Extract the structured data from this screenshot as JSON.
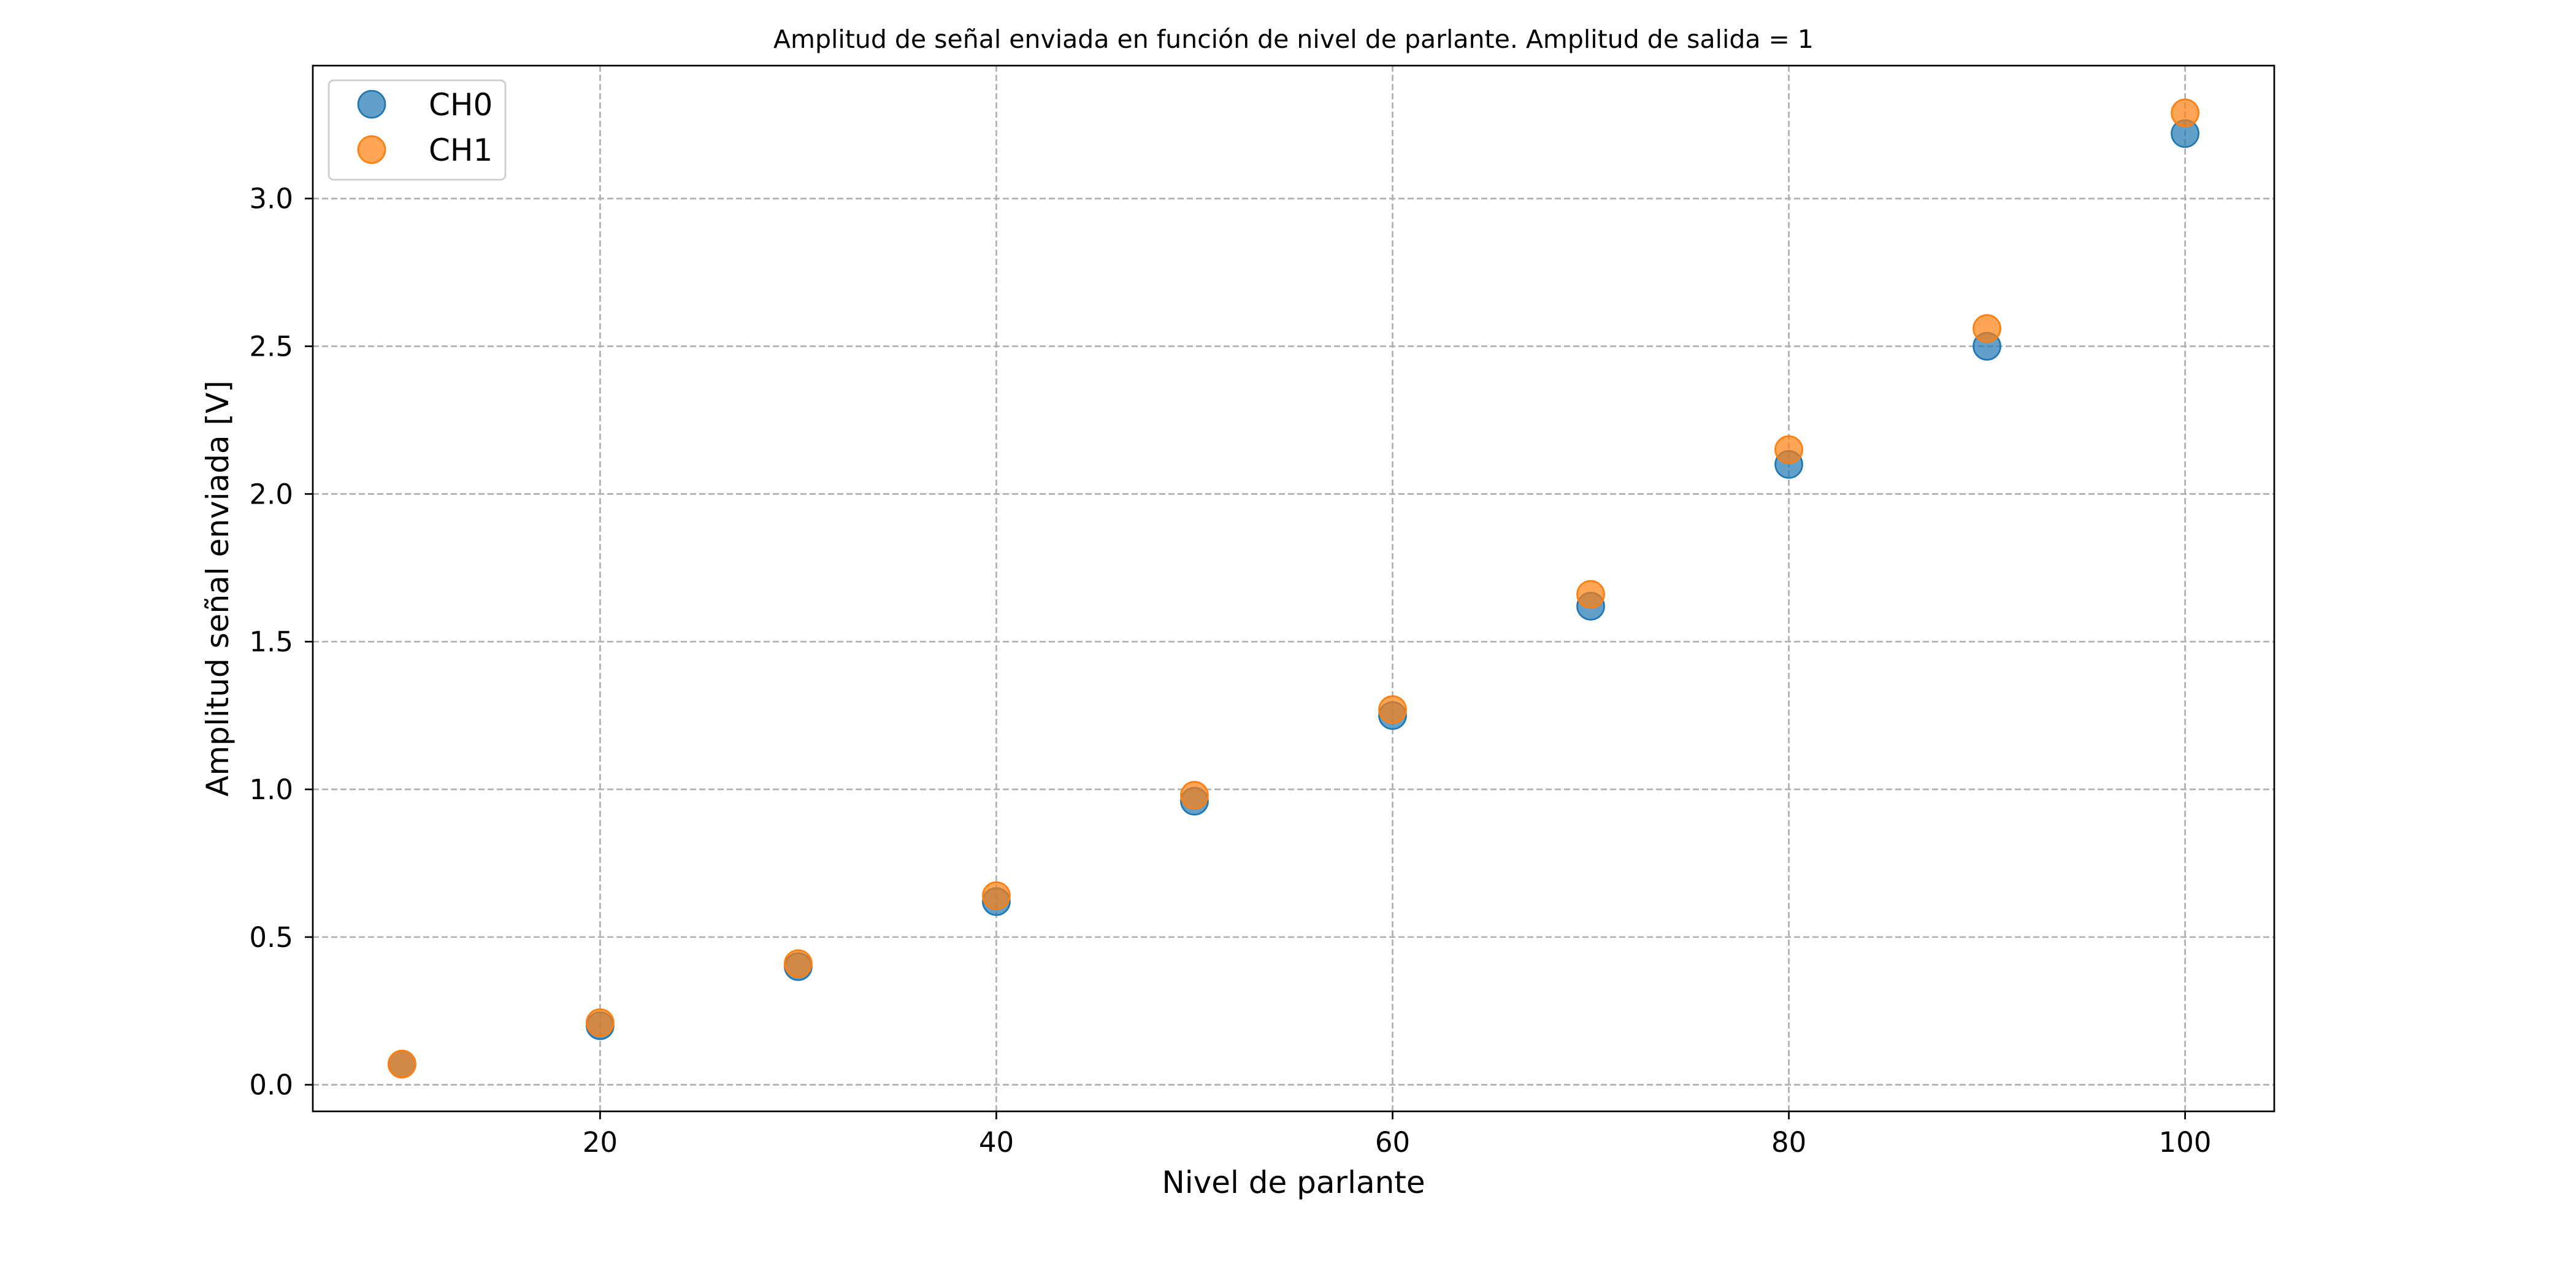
{
  "chart_data": {
    "type": "scatter",
    "title": "Amplitud de señal enviada en función de nivel de parlante. Amplitud de salida = 1",
    "xlabel": "Nivel de parlante",
    "ylabel": "Amplitud señal enviada [V]",
    "xlim": [
      5.5,
      104.5
    ],
    "ylim": [
      -0.09,
      3.45
    ],
    "xticks": [
      20,
      40,
      60,
      80,
      100
    ],
    "yticks": [
      0.0,
      0.5,
      1.0,
      1.5,
      2.0,
      2.5,
      3.0
    ],
    "xtick_labels": [
      "20",
      "40",
      "60",
      "80",
      "100"
    ],
    "ytick_labels": [
      "0.0",
      "0.5",
      "1.0",
      "1.5",
      "2.0",
      "2.5",
      "3.0"
    ],
    "grid": true,
    "legend_position": "top-left",
    "series": [
      {
        "name": "CH0",
        "color": "#1f77b4",
        "x": [
          10,
          20,
          30,
          40,
          50,
          60,
          70,
          80,
          90,
          100
        ],
        "y": [
          0.07,
          0.2,
          0.4,
          0.62,
          0.96,
          1.25,
          1.62,
          2.1,
          2.5,
          3.22
        ]
      },
      {
        "name": "CH1",
        "color": "#ff7f0e",
        "x": [
          10,
          20,
          30,
          40,
          50,
          60,
          70,
          80,
          90,
          100
        ],
        "y": [
          0.07,
          0.21,
          0.41,
          0.64,
          0.98,
          1.27,
          1.66,
          2.15,
          2.56,
          3.29
        ]
      }
    ]
  }
}
